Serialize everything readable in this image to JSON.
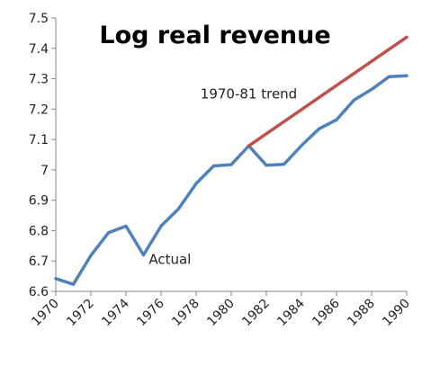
{
  "chart_data": {
    "type": "line",
    "title": "Log real revenue",
    "xlabel": "",
    "ylabel": "",
    "ylim": [
      6.6,
      7.5
    ],
    "xlim": [
      1970,
      1990
    ],
    "x_tick_labels": [
      "1970",
      "1972",
      "1974",
      "1976",
      "1978",
      "1980",
      "1982",
      "1984",
      "1986",
      "1988",
      "1990"
    ],
    "y_tick_labels": [
      "6.6",
      "6.7",
      "6.8",
      "6.9",
      "7",
      "7.1",
      "7.2",
      "7.3",
      "7.4",
      "7.5"
    ],
    "grid": false,
    "series": [
      {
        "label": "Actual",
        "color": "#4f81bd",
        "x": [
          1970,
          1971,
          1972,
          1973,
          1974,
          1975,
          1976,
          1977,
          1978,
          1979,
          1980,
          1981,
          1982,
          1983,
          1984,
          1985,
          1986,
          1987,
          1988,
          1989,
          1990
        ],
        "y": [
          6.642,
          6.623,
          6.718,
          6.793,
          6.815,
          6.72,
          6.815,
          6.872,
          6.955,
          7.013,
          7.017,
          7.079,
          7.015,
          7.018,
          7.08,
          7.135,
          7.165,
          7.23,
          7.265,
          7.307,
          7.31
        ]
      },
      {
        "label": "1970-81 trend",
        "color": "#c0504d",
        "x": [
          1981,
          1990
        ],
        "y": [
          7.079,
          7.437
        ]
      }
    ]
  }
}
